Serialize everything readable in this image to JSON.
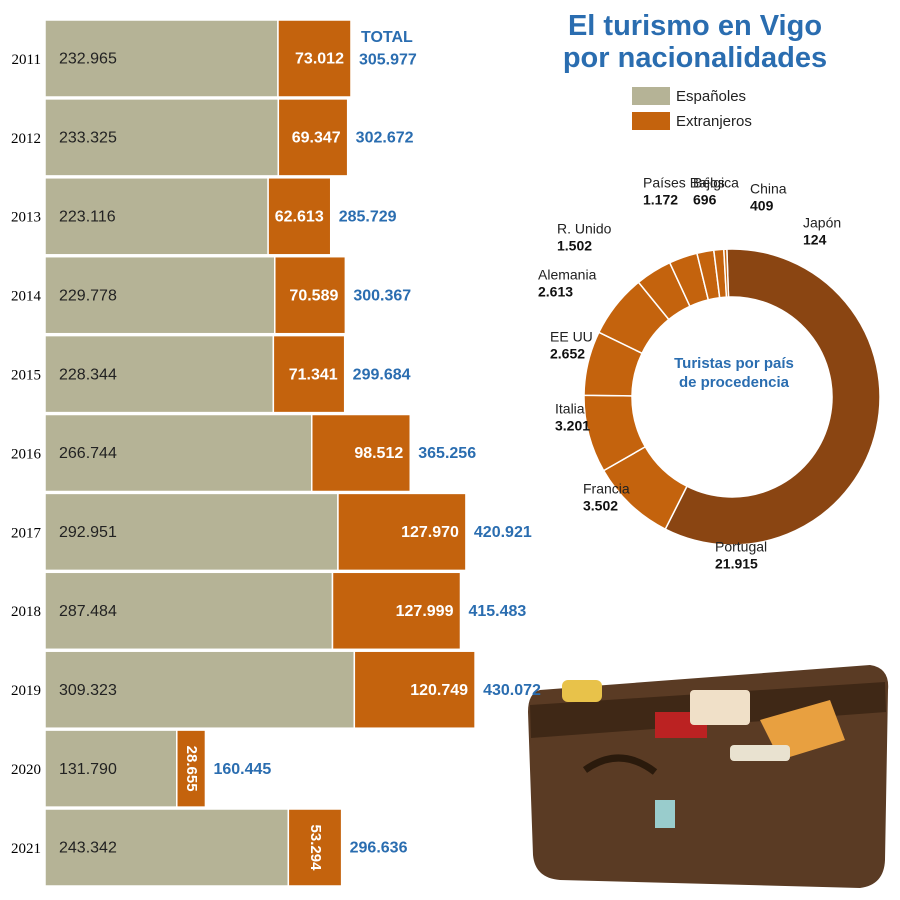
{
  "chart_data": [
    {
      "type": "bar",
      "orientation": "horizontal",
      "stacked": true,
      "title": "El turismo en Vigo por nacionalidades",
      "categories": [
        "2011",
        "2012",
        "2013",
        "2014",
        "2015",
        "2016",
        "2017",
        "2018",
        "2019",
        "2020",
        "2021"
      ],
      "series": [
        {
          "name": "Españoles",
          "color": "#b5b396",
          "values": [
            232965,
            233325,
            223116,
            229778,
            228344,
            266744,
            292951,
            287484,
            309323,
            131790,
            243342
          ],
          "value_labels": [
            "232.965",
            "233.325",
            "223.116",
            "229.778",
            "228.344",
            "266.744",
            "292.951",
            "287.484",
            "309.323",
            "131.790",
            "243.342"
          ]
        },
        {
          "name": "Extranjeros",
          "color": "#c4630d",
          "values": [
            73012,
            69347,
            62613,
            70589,
            71341,
            98512,
            127970,
            127999,
            120749,
            28655,
            53294
          ],
          "value_labels": [
            "73.012",
            "69.347",
            "62.613",
            "70.589",
            "71.341",
            "98.512",
            "127.970",
            "127.999",
            "120.749",
            "28.655",
            "53.294"
          ]
        }
      ],
      "totals": {
        "label": "TOTAL",
        "values": [
          305977,
          302672,
          285729,
          300367,
          299684,
          365256,
          420921,
          415483,
          430072,
          160445,
          296636
        ],
        "value_labels": [
          "305.977",
          "302.672",
          "285.729",
          "300.367",
          "299.684",
          "365.256",
          "420.921",
          "415.483",
          "430.072",
          "160.445",
          "296.636"
        ]
      },
      "xlim": [
        0,
        440000
      ]
    },
    {
      "type": "pie",
      "donut": true,
      "title": "Turistas por país de procedencia",
      "categories": [
        "Portugal",
        "Francia",
        "Italia",
        "EE UU",
        "Alemania",
        "R. Unido",
        "Países Bajos",
        "Bélgica",
        "China",
        "Japón"
      ],
      "values": [
        21915,
        3502,
        3201,
        2652,
        2613,
        1502,
        1172,
        696,
        409,
        124
      ],
      "value_labels": [
        "21.915",
        "3.502",
        "3.201",
        "2.652",
        "2.613",
        "1.502",
        "1.172",
        "696",
        "409",
        "124"
      ],
      "colors": [
        "#8a4512",
        "#c4630d",
        "#c4630d",
        "#c4630d",
        "#c4630d",
        "#c4630d",
        "#c4630d",
        "#c4630d",
        "#c4630d",
        "#c4630d"
      ]
    }
  ]
}
